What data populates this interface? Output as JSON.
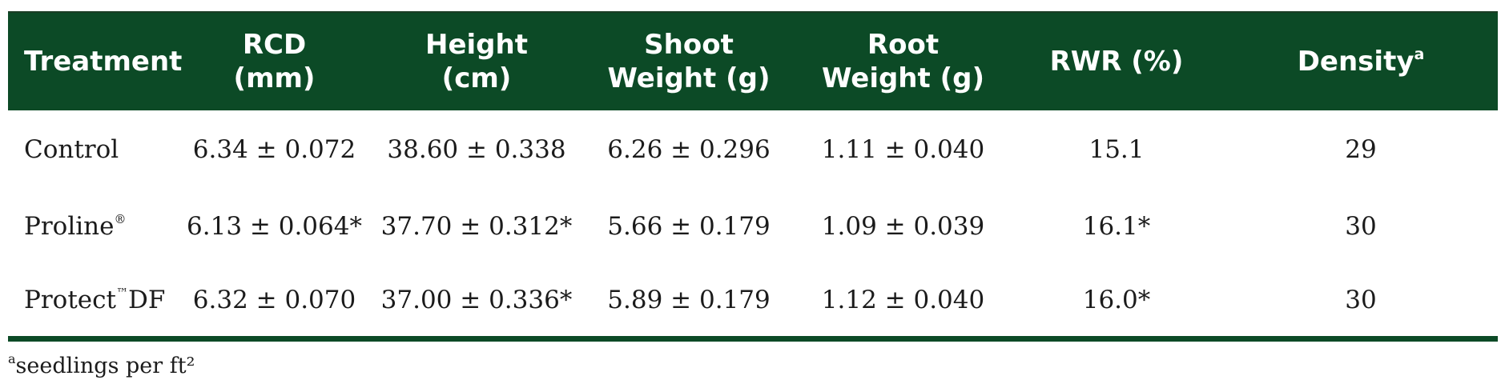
{
  "table": {
    "headers": [
      {
        "lines": [
          "Treatment"
        ]
      },
      {
        "lines": [
          "RCD",
          "(mm)"
        ]
      },
      {
        "lines": [
          "Height",
          "(cm)"
        ]
      },
      {
        "lines": [
          "Shoot",
          "Weight (g)"
        ]
      },
      {
        "lines": [
          "Root",
          "Weight (g)"
        ]
      },
      {
        "lines": [
          "RWR (%)"
        ]
      },
      {
        "lines": [
          "Density"
        ],
        "sup": "a"
      }
    ],
    "rows": [
      {
        "treatment": "Control",
        "treatment_mark": "",
        "treatment_suffix": "",
        "rcd": "6.34 ± 0.072",
        "height": "38.60 ± 0.338",
        "shoot": "6.26 ± 0.296",
        "root": "1.11 ± 0.040",
        "rwr": "15.1",
        "density": "29"
      },
      {
        "treatment": "Proline",
        "treatment_mark": "®",
        "treatment_suffix": "",
        "rcd": "6.13 ± 0.064*",
        "height": "37.70 ± 0.312*",
        "shoot": "5.66 ± 0.179",
        "root": "1.09 ± 0.039",
        "rwr": "16.1*",
        "density": "30"
      },
      {
        "treatment": "Protect",
        "treatment_mark": "™",
        "treatment_suffix": "DF",
        "rcd": "6.32 ± 0.070",
        "height": "37.00 ± 0.336*",
        "shoot": "5.89 ± 0.179",
        "root": "1.12 ± 0.040",
        "rwr": "16.0*",
        "density": "30"
      }
    ]
  },
  "footnote": {
    "sup": "a",
    "text": "seedlings per ft²"
  },
  "colors": {
    "header_bg": "#0c4a26",
    "header_text": "#ffffff",
    "body_text": "#1b1b1b"
  }
}
